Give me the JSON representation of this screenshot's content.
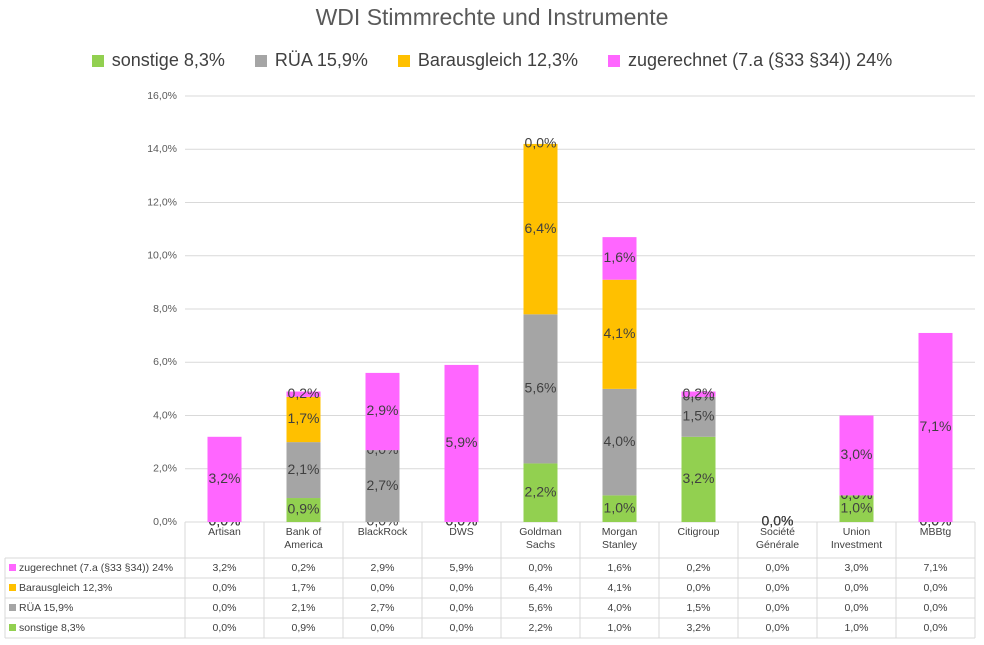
{
  "chart_data": {
    "type": "stacked-bar",
    "title": "WDI Stimmrechte und Instrumente",
    "categories": [
      "Artisan",
      "Bank of America",
      "BlackRock",
      "DWS",
      "Goldman Sachs",
      "Morgan Stanley",
      "Citigroup",
      "Société Générale",
      "Union Investment",
      "MBBtg"
    ],
    "series": [
      {
        "name": "sonstige 8,3%",
        "color": "#92d050",
        "values": [
          0.0,
          0.9,
          0.0,
          0.0,
          2.2,
          1.0,
          3.2,
          0.0,
          1.0,
          0.0
        ],
        "value_labels": [
          "0,0%",
          "0,9%",
          "0,0%",
          "0,0%",
          "2,2%",
          "1,0%",
          "3,2%",
          "0,0%",
          "1,0%",
          "0,0%"
        ]
      },
      {
        "name": "RÜA 15,9%",
        "color": "#a5a5a5",
        "values": [
          0.0,
          2.1,
          2.7,
          0.0,
          5.6,
          4.0,
          1.5,
          0.0,
          0.0,
          0.0
        ],
        "value_labels": [
          "0,0%",
          "2,1%",
          "2,7%",
          "0,0%",
          "5,6%",
          "4,0%",
          "1,5%",
          "0,0%",
          "0,0%",
          "0,0%"
        ]
      },
      {
        "name": "Barausgleich 12,3%",
        "color": "#ffc000",
        "values": [
          0.0,
          1.7,
          0.0,
          0.0,
          6.4,
          4.1,
          0.0,
          0.0,
          0.0,
          0.0
        ],
        "value_labels": [
          "0,0%",
          "1,7%",
          "0,0%",
          "0,0%",
          "6,4%",
          "4,1%",
          "0,0%",
          "0,0%",
          "0,0%",
          "0,0%"
        ]
      },
      {
        "name": "zugerechnet (7.a (§33 §34)) 24%",
        "color": "#ff66ff",
        "values": [
          3.2,
          0.2,
          2.9,
          5.9,
          0.0,
          1.6,
          0.2,
          0.0,
          3.0,
          7.1
        ],
        "value_labels": [
          "3,2%",
          "0,2%",
          "2,9%",
          "5,9%",
          "0,0%",
          "1,6%",
          "0,2%",
          "0,0%",
          "3,0%",
          "7,1%"
        ]
      }
    ],
    "ylim": [
      0,
      16
    ],
    "yticks": [
      {
        "value": 0,
        "label": "0,0%"
      },
      {
        "value": 2,
        "label": "2,0%"
      },
      {
        "value": 4,
        "label": "4,0%"
      },
      {
        "value": 6,
        "label": "6,0%"
      },
      {
        "value": 8,
        "label": "8,0%"
      },
      {
        "value": 10,
        "label": "10,0%"
      },
      {
        "value": 12,
        "label": "12,0%"
      },
      {
        "value": 14,
        "label": "14,0%"
      },
      {
        "value": 16,
        "label": "16,0%"
      }
    ],
    "grid": true,
    "legend": "top"
  }
}
